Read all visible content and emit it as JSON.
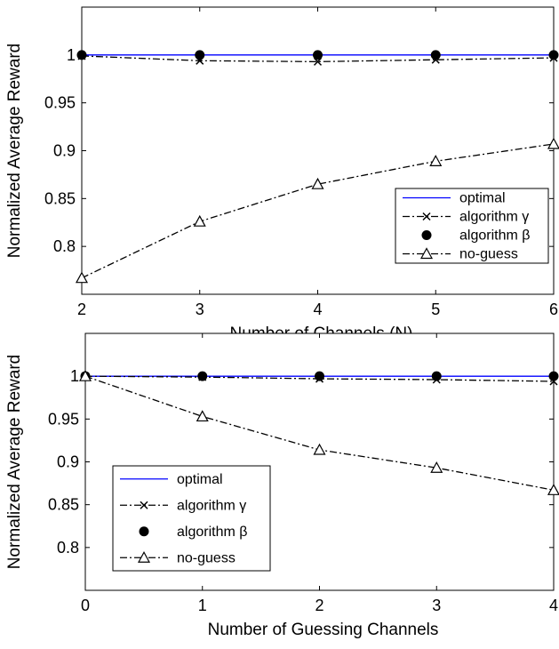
{
  "chart_data": [
    {
      "type": "line",
      "xlabel": "Number of Channels (N)",
      "ylabel": "Normalized Average Reward",
      "x": [
        2,
        3,
        4,
        5,
        6
      ],
      "xlim": [
        2,
        6
      ],
      "ylim": [
        0.75,
        1.05
      ],
      "xticks": [
        "2",
        "3",
        "4",
        "5",
        "6"
      ],
      "yticks": [
        "0.8",
        "0.85",
        "0.9",
        "0.95",
        "1"
      ],
      "ytick_values": [
        0.8,
        0.85,
        0.9,
        0.95,
        1.0
      ],
      "grid": false,
      "legend_position": "bottom-right",
      "series": [
        {
          "name": "optimal",
          "values": [
            1.0,
            1.0,
            1.0,
            1.0,
            1.0
          ],
          "color": "#0000ff",
          "marker": "none",
          "dash": "solid"
        },
        {
          "name": "algorithm γ",
          "values": [
            0.999,
            0.994,
            0.993,
            0.995,
            0.997
          ],
          "color": "#000000",
          "marker": "x",
          "dash": "dashdot"
        },
        {
          "name": "algorithm β",
          "values": [
            1.0,
            1.0,
            1.0,
            1.0,
            1.0
          ],
          "color": "#000000",
          "marker": "dot",
          "dash": "none"
        },
        {
          "name": "no-guess",
          "values": [
            0.767,
            0.826,
            0.865,
            0.889,
            0.907
          ],
          "color": "#000000",
          "marker": "triangle",
          "dash": "dashdot"
        }
      ]
    },
    {
      "type": "line",
      "xlabel": "Number of Guessing Channels",
      "ylabel": "Normalized Average Reward",
      "x": [
        0,
        1,
        2,
        3,
        4
      ],
      "xlim": [
        0,
        4
      ],
      "ylim": [
        0.75,
        1.05
      ],
      "xticks": [
        "0",
        "1",
        "2",
        "3",
        "4"
      ],
      "yticks": [
        "0.8",
        "0.85",
        "0.9",
        "0.95",
        "1"
      ],
      "ytick_values": [
        0.8,
        0.85,
        0.9,
        0.95,
        1.0
      ],
      "grid": false,
      "legend_position": "bottom-left",
      "series": [
        {
          "name": "optimal",
          "values": [
            1.0,
            1.0,
            1.0,
            1.0,
            1.0
          ],
          "color": "#0000ff",
          "marker": "none",
          "dash": "solid"
        },
        {
          "name": "algorithm γ",
          "values": [
            1.0,
            0.999,
            0.997,
            0.996,
            0.994
          ],
          "color": "#000000",
          "marker": "x",
          "dash": "dashdot"
        },
        {
          "name": "algorithm β",
          "values": [
            1.0,
            1.0,
            1.0,
            1.0,
            1.0
          ],
          "color": "#000000",
          "marker": "dot",
          "dash": "none"
        },
        {
          "name": "no-guess",
          "values": [
            1.0,
            0.953,
            0.914,
            0.893,
            0.867
          ],
          "color": "#000000",
          "marker": "triangle",
          "dash": "dashdot"
        }
      ]
    }
  ]
}
